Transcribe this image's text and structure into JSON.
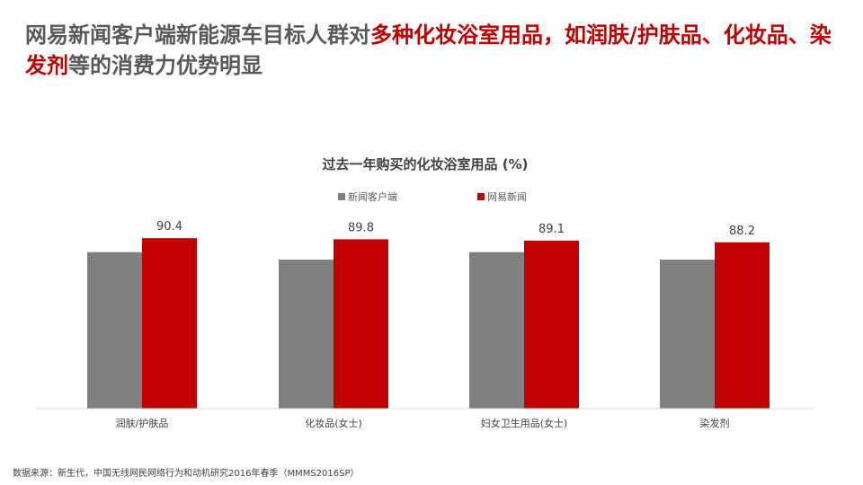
{
  "headline": {
    "part1": "网易新闻客户端新能源车目标人群对",
    "part2": "多种化妆浴室用品，如",
    "part3": "润肤/护肤品",
    "part4": "、化妆品、",
    "part5": "染发剂",
    "part6": "等的消费力优势明显"
  },
  "footnote": "数据来源：新生代，中国无线网民网络行为和动机研究2016年春季（MMMS2016SP）",
  "colors": {
    "gray": "#808080",
    "red": "#c00000",
    "text": "#595959"
  },
  "chart_data": {
    "type": "bar",
    "title": "过去一年购买的化妆浴室用品 (%)",
    "categories": [
      "润肤/护肤品",
      "化妆品(女士)",
      "妇女卫生用品(女士)",
      "染发剂"
    ],
    "ylim": [
      0,
      100
    ],
    "grid": false,
    "legend_position": "top-center",
    "series": [
      {
        "name": "新闻客户端",
        "color": "#808080",
        "values": [
          83,
          79,
          83,
          79
        ],
        "labels_shown": false
      },
      {
        "name": "网易新闻",
        "color": "#c00000",
        "values": [
          90.4,
          89.8,
          89.1,
          88.2
        ],
        "labels_shown": true
      }
    ]
  }
}
